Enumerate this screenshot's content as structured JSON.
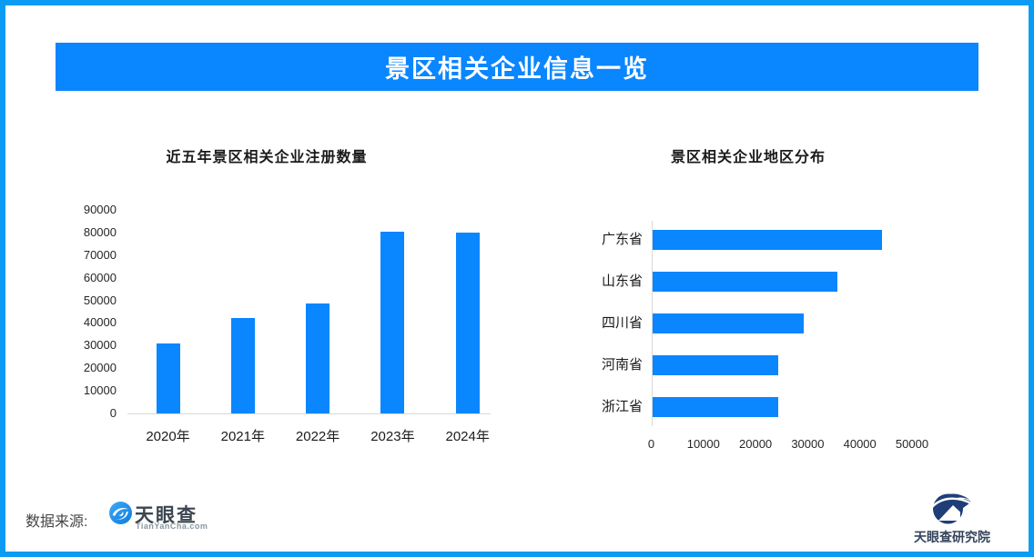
{
  "page": {
    "border_color": "#0c9bf2",
    "background_color": "#ffffff",
    "accent_color": "#0a86ff"
  },
  "header": {
    "title": "景区相关企业信息一览",
    "bg_color": "#0a86ff",
    "text_color": "#ffffff"
  },
  "chart_data": [
    {
      "type": "bar",
      "orientation": "vertical",
      "title": "近五年景区相关企业注册数量",
      "categories": [
        "2020年",
        "2021年",
        "2022年",
        "2023年",
        "2024年"
      ],
      "values": [
        31000,
        42000,
        48500,
        80500,
        80000
      ],
      "xlabel": "",
      "ylabel": "",
      "ylim": [
        0,
        90000
      ],
      "ytick_step": 10000,
      "ytick_labels": [
        "0",
        "10000",
        "20000",
        "30000",
        "40000",
        "50000",
        "60000",
        "70000",
        "80000",
        "90000"
      ],
      "bar_color": "#0a86ff",
      "grid": false,
      "legend": false
    },
    {
      "type": "bar",
      "orientation": "horizontal",
      "title": "景区相关企业地区分布",
      "categories": [
        "广东省",
        "山东省",
        "四川省",
        "河南省",
        "浙江省"
      ],
      "values": [
        44000,
        35500,
        29000,
        24000,
        24000
      ],
      "xlabel": "",
      "ylabel": "",
      "xlim": [
        0,
        50000
      ],
      "xtick_step": 10000,
      "xtick_labels": [
        "0",
        "10000",
        "20000",
        "30000",
        "40000",
        "50000"
      ],
      "bar_color": "#0a86ff",
      "grid": false,
      "legend": false
    }
  ],
  "footer": {
    "source_label": "数据来源:",
    "source_logo": {
      "icon": "tianyancha-eye-logo",
      "name": "天眼查",
      "domain": "TianYanCha.com"
    },
    "research_logo": {
      "icon": "tianyancha-research-mountain-logo",
      "name": "天眼查研究院"
    }
  }
}
